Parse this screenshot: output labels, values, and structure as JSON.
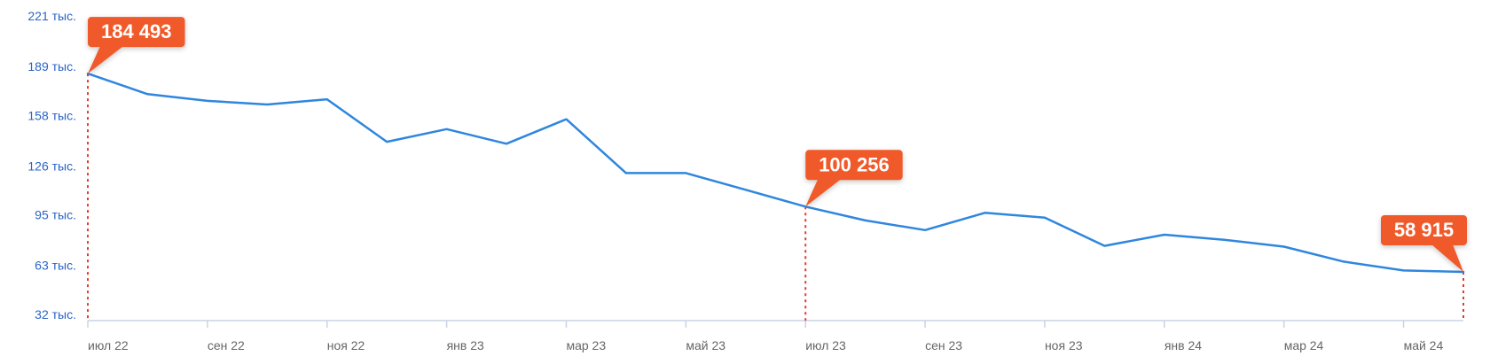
{
  "chart_data": {
    "type": "line",
    "title": "",
    "xlabel": "",
    "ylabel": "",
    "ylim": [
      32,
      221
    ],
    "yticks": [
      {
        "value": 221,
        "label": "221 тыс."
      },
      {
        "value": 189,
        "label": "189 тыс."
      },
      {
        "value": 158,
        "label": "158 тыс."
      },
      {
        "value": 126,
        "label": "126 тыс."
      },
      {
        "value": 95,
        "label": "95 тыс."
      },
      {
        "value": 63,
        "label": "63 тыс."
      },
      {
        "value": 32,
        "label": "32 тыс."
      }
    ],
    "xticks": [
      {
        "index": 0,
        "label": "июл 22"
      },
      {
        "index": 2,
        "label": "сен 22"
      },
      {
        "index": 4,
        "label": "ноя 22"
      },
      {
        "index": 6,
        "label": "янв 23"
      },
      {
        "index": 8,
        "label": "мар 23"
      },
      {
        "index": 10,
        "label": "май 23"
      },
      {
        "index": 12,
        "label": "июл 23"
      },
      {
        "index": 14,
        "label": "сен 23"
      },
      {
        "index": 16,
        "label": "ноя 23"
      },
      {
        "index": 18,
        "label": "янв 24"
      },
      {
        "index": 20,
        "label": "мар 24"
      },
      {
        "index": 22,
        "label": "май 24"
      }
    ],
    "categories": [
      "июл 22",
      "авг 22",
      "сен 22",
      "окт 22",
      "ноя 22",
      "дек 22",
      "янв 23",
      "фев 23",
      "мар 23",
      "апр 23",
      "май 23",
      "июн 23",
      "июл 23",
      "авг 23",
      "сен 23",
      "окт 23",
      "ноя 23",
      "дек 23",
      "янв 24",
      "фев 24",
      "мар 24",
      "апр 24",
      "май 24",
      "июн 24"
    ],
    "series": [
      {
        "color": "#2f86de",
        "values": [
          184493,
          171500,
          167200,
          164900,
          168200,
          141300,
          149300,
          140100,
          155600,
          121500,
          121500,
          110900,
          100256,
          91500,
          85400,
          96300,
          93300,
          75400,
          82500,
          79300,
          74900,
          65400,
          59800,
          58915
        ]
      }
    ],
    "callouts": [
      {
        "index": 0,
        "label": "184 493"
      },
      {
        "index": 12,
        "label": "100 256"
      },
      {
        "index": 23,
        "label": "58 915"
      }
    ],
    "colors": {
      "line": "#2f86de",
      "callout": "#f05a2b",
      "marker_line": "#e23b2e",
      "axis": "#c9d4e6",
      "ytick_text": "#2b63c6",
      "xtick_text": "#666666"
    }
  }
}
